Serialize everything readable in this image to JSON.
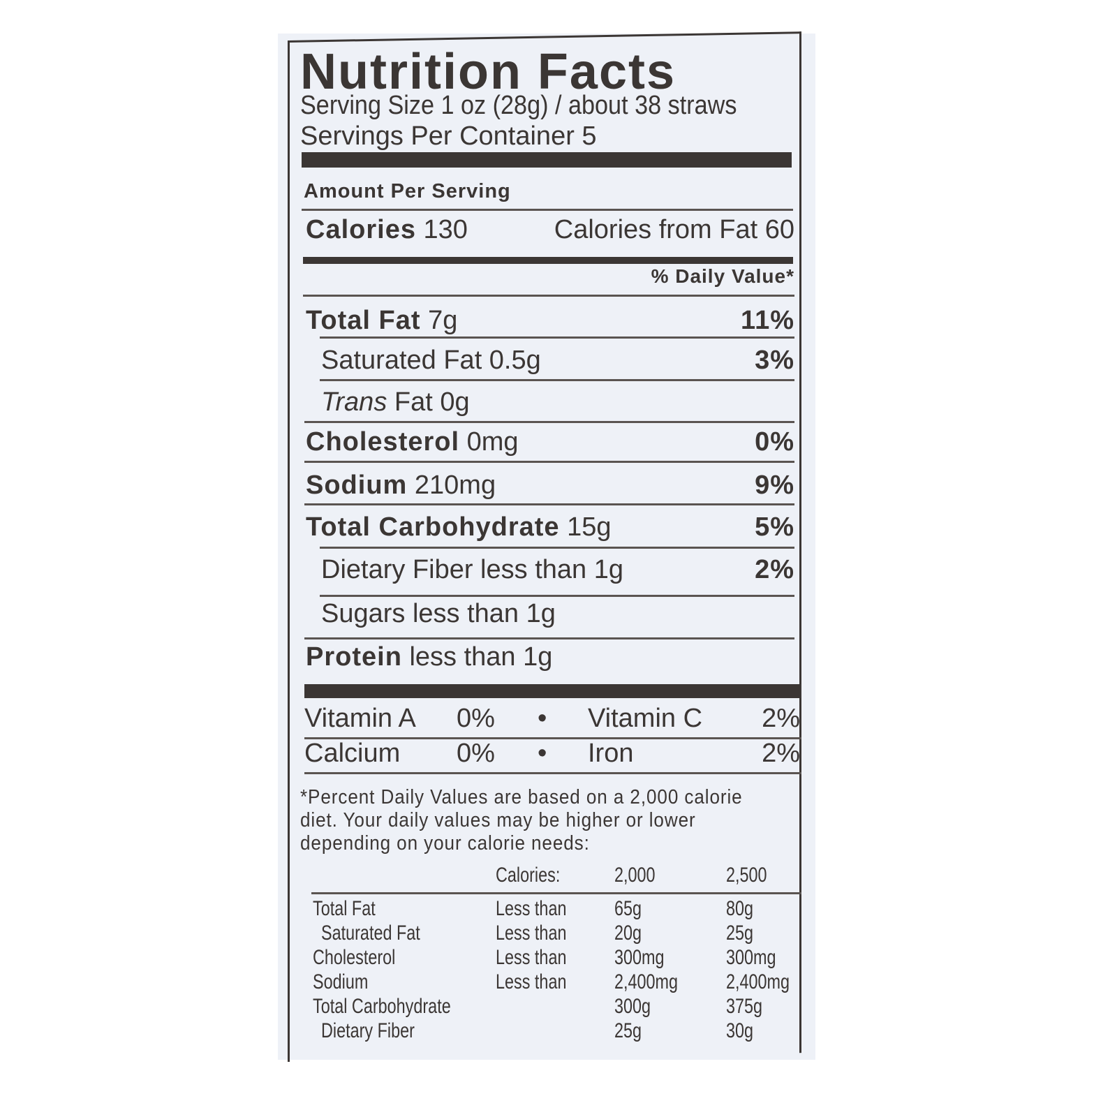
{
  "title": "Nutrition Facts",
  "serving_size": "Serving Size 1 oz (28g) / about 38 straws",
  "servings_per_container": "Servings Per Container 5",
  "amount_per_serving": "Amount Per Serving",
  "calories": {
    "label": "Calories",
    "value": "130",
    "from_fat": "Calories from Fat 60"
  },
  "daily_value_header": "% Daily Value*",
  "nutrients": [
    {
      "label": "Total Fat",
      "amount": "7g",
      "dv": "11%"
    },
    {
      "label": "Saturated Fat 0.5g",
      "amount": "",
      "dv": "3%"
    },
    {
      "label": "Trans",
      "amount": "Fat 0g",
      "dv": ""
    },
    {
      "label": "Cholesterol",
      "amount": "0mg",
      "dv": "0%"
    },
    {
      "label": "Sodium",
      "amount": "210mg",
      "dv": "9%"
    },
    {
      "label": "Total Carbohydrate",
      "amount": "15g",
      "dv": "5%"
    },
    {
      "label": "Dietary Fiber less than 1g",
      "amount": "",
      "dv": "2%"
    },
    {
      "label": "Sugars less than 1g",
      "amount": "",
      "dv": ""
    },
    {
      "label": "Protein",
      "amount": "less than 1g",
      "dv": ""
    }
  ],
  "vitamins": [
    {
      "label": "Vitamin A",
      "dv": "0%",
      "label2": "Vitamin C",
      "dv2": "2%"
    },
    {
      "label": "Calcium",
      "dv": "0%",
      "label2": "Iron",
      "dv2": "2%"
    }
  ],
  "bullet": "•",
  "footnote": [
    "*Percent Daily Values are based on a 2,000 calorie",
    "diet. Your daily values may be higher or lower",
    "depending on your calorie needs:"
  ],
  "reference_table": {
    "header": [
      "Calories:",
      "2,000",
      "2,500"
    ],
    "rows": [
      [
        "Total Fat",
        "Less than",
        "65g",
        "80g"
      ],
      [
        " Saturated Fat",
        "Less than",
        "20g",
        "25g"
      ],
      [
        "Cholesterol",
        "Less than",
        "300mg",
        "300mg"
      ],
      [
        "Sodium",
        "Less than",
        "2,400mg",
        "2,400mg"
      ],
      [
        "Total Carbohydrate",
        "",
        "300g",
        "375g"
      ],
      [
        " Dietary Fiber",
        "",
        "25g",
        "30g"
      ]
    ]
  },
  "colors": {
    "ink": "#3b3634",
    "label_background": "#eef1f7"
  }
}
